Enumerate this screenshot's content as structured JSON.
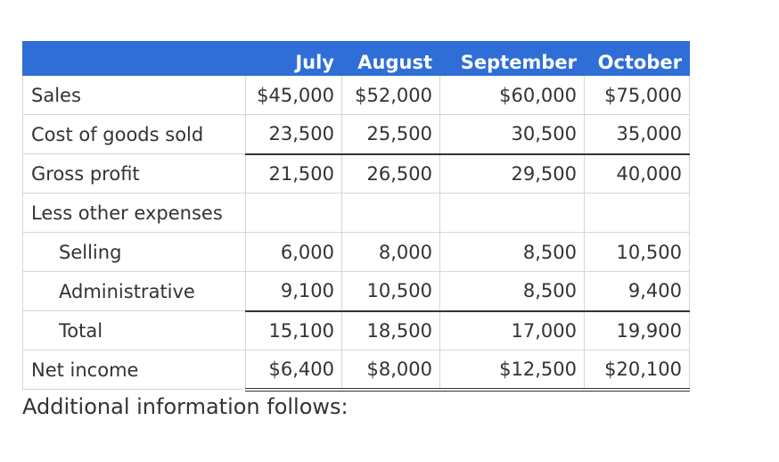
{
  "table": {
    "headers": [
      "",
      "July",
      "August",
      "September",
      "October"
    ],
    "rows": [
      {
        "label": "Sales",
        "values": [
          "$45,000",
          "$52,000",
          "$60,000",
          "$75,000"
        ]
      },
      {
        "label": "Cost of goods sold",
        "values": [
          "23,500",
          "25,500",
          "30,500",
          "35,000"
        ]
      },
      {
        "label": "Gross profit",
        "values": [
          "21,500",
          "26,500",
          "29,500",
          "40,000"
        ]
      },
      {
        "label": "Less other expenses",
        "values": [
          "",
          "",
          "",
          ""
        ]
      },
      {
        "label": "Selling",
        "values": [
          "6,000",
          "8,000",
          "8,500",
          "10,500"
        ]
      },
      {
        "label": "Administrative",
        "values": [
          "9,100",
          "10,500",
          "8,500",
          "9,400"
        ]
      },
      {
        "label": "Total",
        "values": [
          "15,100",
          "18,500",
          "17,000",
          "19,900"
        ]
      },
      {
        "label": "Net income",
        "values": [
          "$6,400",
          "$8,000",
          "$12,500",
          "$20,100"
        ]
      }
    ]
  },
  "footer_text": "Additional information follows:",
  "colors": {
    "header_bg": "#2f6ed7",
    "header_text": "#ffffff",
    "body_text": "#333333",
    "grid": "#d6d6d6"
  }
}
